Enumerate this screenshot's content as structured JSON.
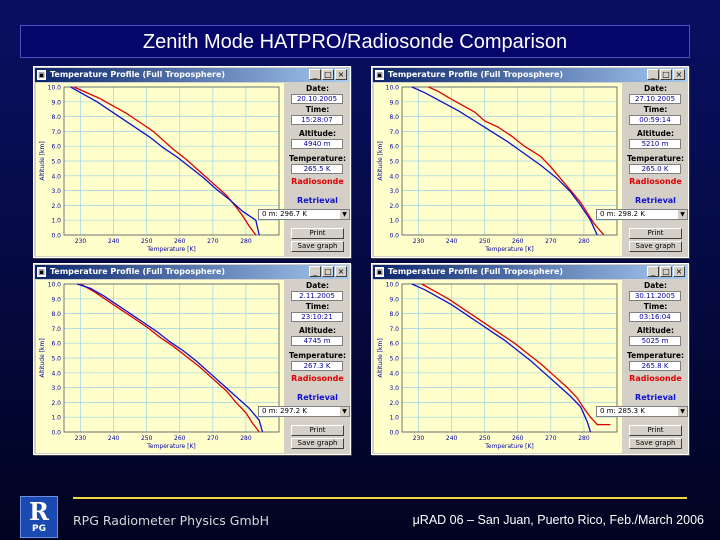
{
  "slide": {
    "title": "Zenith Mode HATPRO/Radiosonde Comparison",
    "footer_left": "RPG Radiometer Physics GmbH",
    "footer_right": "μRAD 06 – San Juan, Puerto Rico, Feb./March 2006",
    "logo_symbol": "R",
    "logo_text": "PG"
  },
  "colors": {
    "radiosonde": "#e00000",
    "retrieval": "#1010d0",
    "plot_bg": "#ffffcc",
    "grid": "#9bd4e6"
  },
  "windows": [
    {
      "title": "Temperature Profile (Full Troposphere)",
      "date_label": "Date:",
      "date": "20.10.2005",
      "time_label": "Time:",
      "time": "15:28:07",
      "altitude_label": "Altitude:",
      "altitude": "4940 m",
      "temperature_label": "Temperature:",
      "temperature": "265.5 K",
      "legend_radiosonde": "Radiosonde",
      "legend_retrieval": "Retrieval",
      "dropdown": "0 m: 296.7 K",
      "print_button": "Print",
      "save_button": "Save graph",
      "min_btn": "_",
      "max_btn": "□",
      "close_btn": "×"
    },
    {
      "title": "Temperature Profile (Full Troposphere)",
      "date_label": "Date:",
      "date": "27.10.2005",
      "time_label": "Time:",
      "time": "00:59:14",
      "altitude_label": "Altitude:",
      "altitude": "5210 m",
      "temperature_label": "Temperature:",
      "temperature": "265.0 K",
      "legend_radiosonde": "Radiosonde",
      "legend_retrieval": "Retrieval",
      "dropdown": "0 m: 298.2 K",
      "print_button": "Print",
      "save_button": "Save graph",
      "min_btn": "_",
      "max_btn": "□",
      "close_btn": "×"
    },
    {
      "title": "Temperature Profile (Full Troposphere)",
      "date_label": "Date:",
      "date": "2.11.2005",
      "time_label": "Time:",
      "time": "23:10:21",
      "altitude_label": "Altitude:",
      "altitude": "4745 m",
      "temperature_label": "Temperature:",
      "temperature": "267.3 K",
      "legend_radiosonde": "Radiosonde",
      "legend_retrieval": "Retrieval",
      "dropdown": "0 m: 297.2 K",
      "print_button": "Print",
      "save_button": "Save graph",
      "min_btn": "_",
      "max_btn": "□",
      "close_btn": "×"
    },
    {
      "title": "Temperature Profile (Full Troposphere)",
      "date_label": "Date:",
      "date": "30.11.2005",
      "time_label": "Time:",
      "time": "03:16:04",
      "altitude_label": "Altitude:",
      "altitude": "5025 m",
      "temperature_label": "Temperature:",
      "temperature": "265.8 K",
      "legend_radiosonde": "Radiosonde",
      "legend_retrieval": "Retrieval",
      "dropdown": "0 m: 285.3 K",
      "print_button": "Print",
      "save_button": "Save graph",
      "min_btn": "_",
      "max_btn": "□",
      "close_btn": "×"
    }
  ],
  "chart_data": [
    {
      "type": "line",
      "xlabel": "Temperature [K]",
      "ylabel": "Altitude [km]",
      "xlim": [
        225,
        290
      ],
      "ylim": [
        0,
        10
      ],
      "xticks": [
        "230",
        "240",
        "250",
        "260",
        "270",
        "280"
      ],
      "yticks": [
        "0.0",
        "1.0",
        "2.0",
        "3.0",
        "4.0",
        "5.0",
        "6.0",
        "7.0",
        "8.0",
        "9.0",
        "10.0"
      ],
      "grid": true,
      "series": [
        {
          "name": "Radiosonde",
          "color": "#e00000",
          "x": [
            283,
            281,
            279,
            277,
            274,
            270,
            266,
            262,
            258,
            255,
            252,
            248,
            244,
            240,
            236,
            232,
            228
          ],
          "y": [
            0,
            0.6,
            1.3,
            1.9,
            2.7,
            3.5,
            4.3,
            5.1,
            5.8,
            6.4,
            7.0,
            7.6,
            8.2,
            8.7,
            9.2,
            9.6,
            10.0
          ]
        },
        {
          "name": "Retrieval",
          "color": "#1010d0",
          "x": [
            284,
            283,
            279,
            275,
            271,
            267,
            263,
            259,
            255,
            251,
            247,
            243,
            239,
            235,
            231,
            227
          ],
          "y": [
            0,
            1.0,
            1.6,
            2.4,
            3.1,
            3.9,
            4.6,
            5.3,
            5.9,
            6.6,
            7.2,
            7.8,
            8.4,
            9.0,
            9.5,
            10.0
          ]
        }
      ]
    },
    {
      "type": "line",
      "xlabel": "Temperature [K]",
      "ylabel": "Altitude [km]",
      "xlim": [
        225,
        290
      ],
      "ylim": [
        0,
        10
      ],
      "xticks": [
        "230",
        "240",
        "250",
        "260",
        "270",
        "280"
      ],
      "yticks": [
        "0.0",
        "1.0",
        "2.0",
        "3.0",
        "4.0",
        "5.0",
        "6.0",
        "7.0",
        "8.0",
        "9.0",
        "10.0"
      ],
      "grid": true,
      "series": [
        {
          "name": "Radiosonde",
          "color": "#e00000",
          "x": [
            286,
            283,
            281,
            279,
            276,
            273,
            270,
            267,
            262,
            258,
            254,
            250,
            247,
            243,
            239,
            236,
            233
          ],
          "y": [
            0,
            0.8,
            1.5,
            2.2,
            3.0,
            3.8,
            4.6,
            5.3,
            6.0,
            6.7,
            7.3,
            7.7,
            8.3,
            8.8,
            9.3,
            9.7,
            10.0
          ]
        },
        {
          "name": "Retrieval",
          "color": "#1010d0",
          "x": [
            284,
            282,
            279,
            276,
            272,
            267,
            262,
            257,
            252,
            247,
            242,
            237,
            232,
            228
          ],
          "y": [
            0,
            1.0,
            2.0,
            2.9,
            3.8,
            4.7,
            5.5,
            6.3,
            7.0,
            7.7,
            8.4,
            9.0,
            9.6,
            10.0
          ]
        }
      ]
    },
    {
      "type": "line",
      "xlabel": "Temperature [K]",
      "ylabel": "Altitude [km]",
      "xlim": [
        225,
        290
      ],
      "ylim": [
        0,
        10
      ],
      "xticks": [
        "230",
        "240",
        "250",
        "260",
        "270",
        "280"
      ],
      "yticks": [
        "0.0",
        "1.0",
        "2.0",
        "3.0",
        "4.0",
        "5.0",
        "6.0",
        "7.0",
        "8.0",
        "9.0",
        "10.0"
      ],
      "grid": true,
      "series": [
        {
          "name": "Radiosonde",
          "color": "#e00000",
          "x": [
            284,
            282,
            280,
            277,
            274,
            270,
            266,
            262,
            258,
            254,
            250,
            246,
            242,
            238,
            234,
            230
          ],
          "y": [
            0,
            0.6,
            1.3,
            2.0,
            2.8,
            3.6,
            4.4,
            5.1,
            5.8,
            6.4,
            7.1,
            7.7,
            8.3,
            8.9,
            9.5,
            10.0
          ]
        },
        {
          "name": "Retrieval",
          "color": "#1010d0",
          "x": [
            285,
            284,
            281,
            277,
            273,
            269,
            265,
            261,
            257,
            253,
            249,
            245,
            241,
            237,
            233,
            229
          ],
          "y": [
            0,
            0.8,
            1.6,
            2.4,
            3.2,
            4.0,
            4.8,
            5.5,
            6.1,
            6.8,
            7.4,
            8.0,
            8.6,
            9.2,
            9.7,
            10.0
          ]
        }
      ]
    },
    {
      "type": "line",
      "xlabel": "Temperature [K]",
      "ylabel": "Altitude [km]",
      "xlim": [
        225,
        290
      ],
      "ylim": [
        0,
        10
      ],
      "xticks": [
        "230",
        "240",
        "250",
        "260",
        "270",
        "280"
      ],
      "yticks": [
        "0.0",
        "1.0",
        "2.0",
        "3.0",
        "4.0",
        "5.0",
        "6.0",
        "7.0",
        "8.0",
        "9.0",
        "10.0"
      ],
      "grid": true,
      "series": [
        {
          "name": "Radiosonde",
          "color": "#e00000",
          "x": [
            288,
            284,
            282,
            280,
            278,
            275,
            271,
            267,
            263,
            259,
            255,
            251,
            247,
            243,
            239,
            235,
            231
          ],
          "y": [
            0.5,
            0.5,
            1.0,
            1.6,
            2.3,
            3.0,
            3.8,
            4.6,
            5.3,
            6.0,
            6.6,
            7.2,
            7.8,
            8.4,
            9.0,
            9.5,
            10.0
          ]
        },
        {
          "name": "Retrieval",
          "color": "#1010d0",
          "x": [
            282,
            281,
            280,
            279,
            276,
            272,
            268,
            264,
            260,
            256,
            252,
            248,
            244,
            240,
            236,
            232,
            228
          ],
          "y": [
            0,
            0.7,
            1.2,
            1.7,
            2.4,
            3.2,
            4.0,
            4.8,
            5.5,
            6.2,
            6.8,
            7.4,
            8.0,
            8.6,
            9.1,
            9.6,
            10.0
          ]
        }
      ]
    }
  ]
}
